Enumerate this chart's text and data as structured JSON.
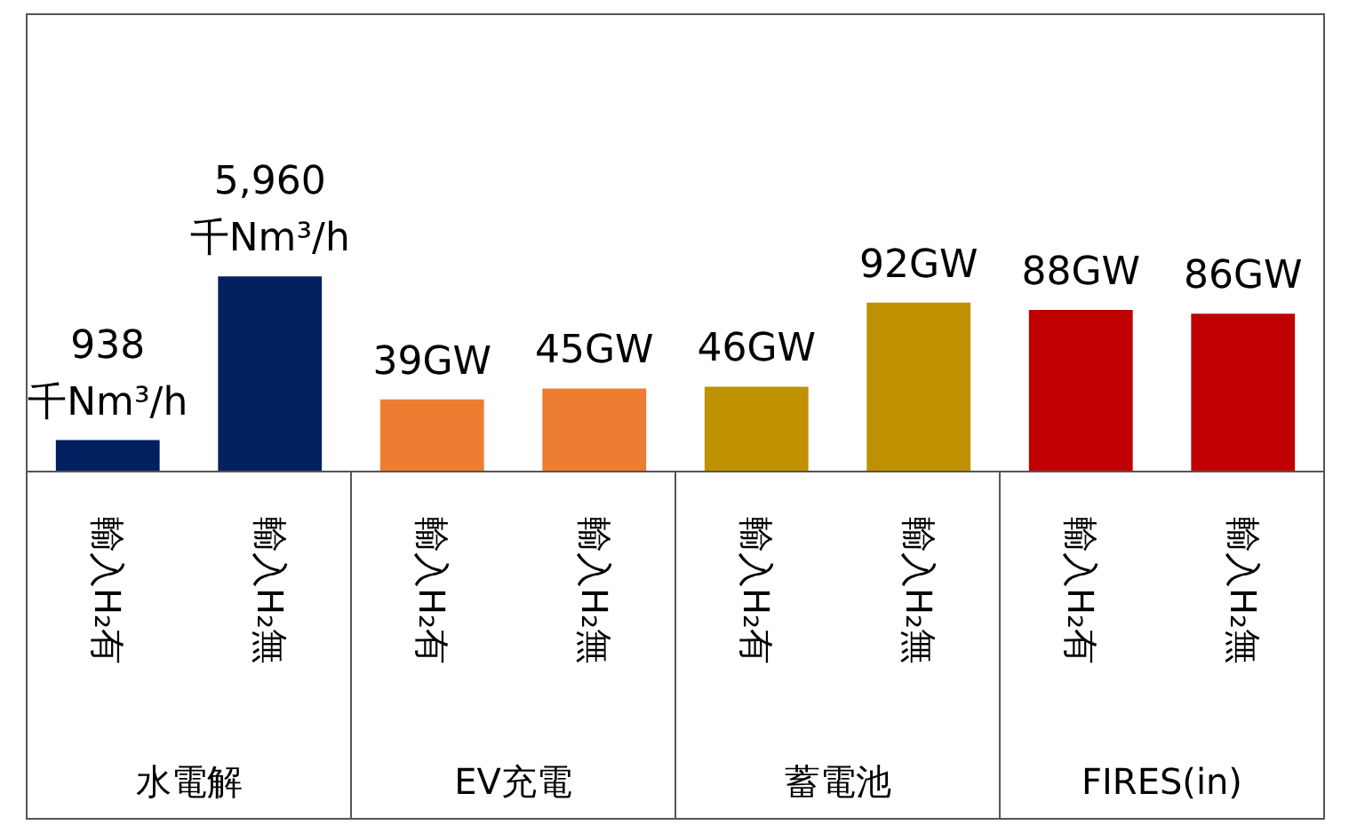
{
  "chart_data": {
    "type": "bar",
    "categories": [
      "輸入H₂有",
      "輸入H₂無",
      "輸入H₂有",
      "輸入H₂無",
      "輸入H₂有",
      "輸入H₂無",
      "輸入H₂有",
      "輸入H₂無"
    ],
    "series": [
      {
        "axis": "y2",
        "colors": [
          "#002060",
          "#002060",
          null,
          null,
          null,
          null,
          null,
          null
        ],
        "values": [
          938,
          5960,
          null,
          null,
          null,
          null,
          null,
          null
        ],
        "value_labels": [
          "938\n千Nm³/h",
          "5,960\n千Nm³/h",
          null,
          null,
          null,
          null,
          null,
          null
        ]
      },
      {
        "colors": [
          null,
          null,
          "#ed7d31",
          "#ed7d31",
          "#bf9000",
          "#bf9000",
          "#c00000",
          "#c00000"
        ],
        "values": [
          null,
          null,
          39,
          45,
          46,
          92,
          88,
          86
        ],
        "value_labels": [
          null,
          null,
          "39GW",
          "45GW",
          "46GW",
          "92GW",
          "88GW",
          "86GW"
        ]
      }
    ],
    "ylim": [
      0,
      250
    ],
    "y2lim": [
      0,
      14000
    ],
    "annotations": [
      "水電解",
      "EV充電",
      "蓄電池",
      "FIRES(in)"
    ],
    "grid": false,
    "tick_labels": "x"
  }
}
